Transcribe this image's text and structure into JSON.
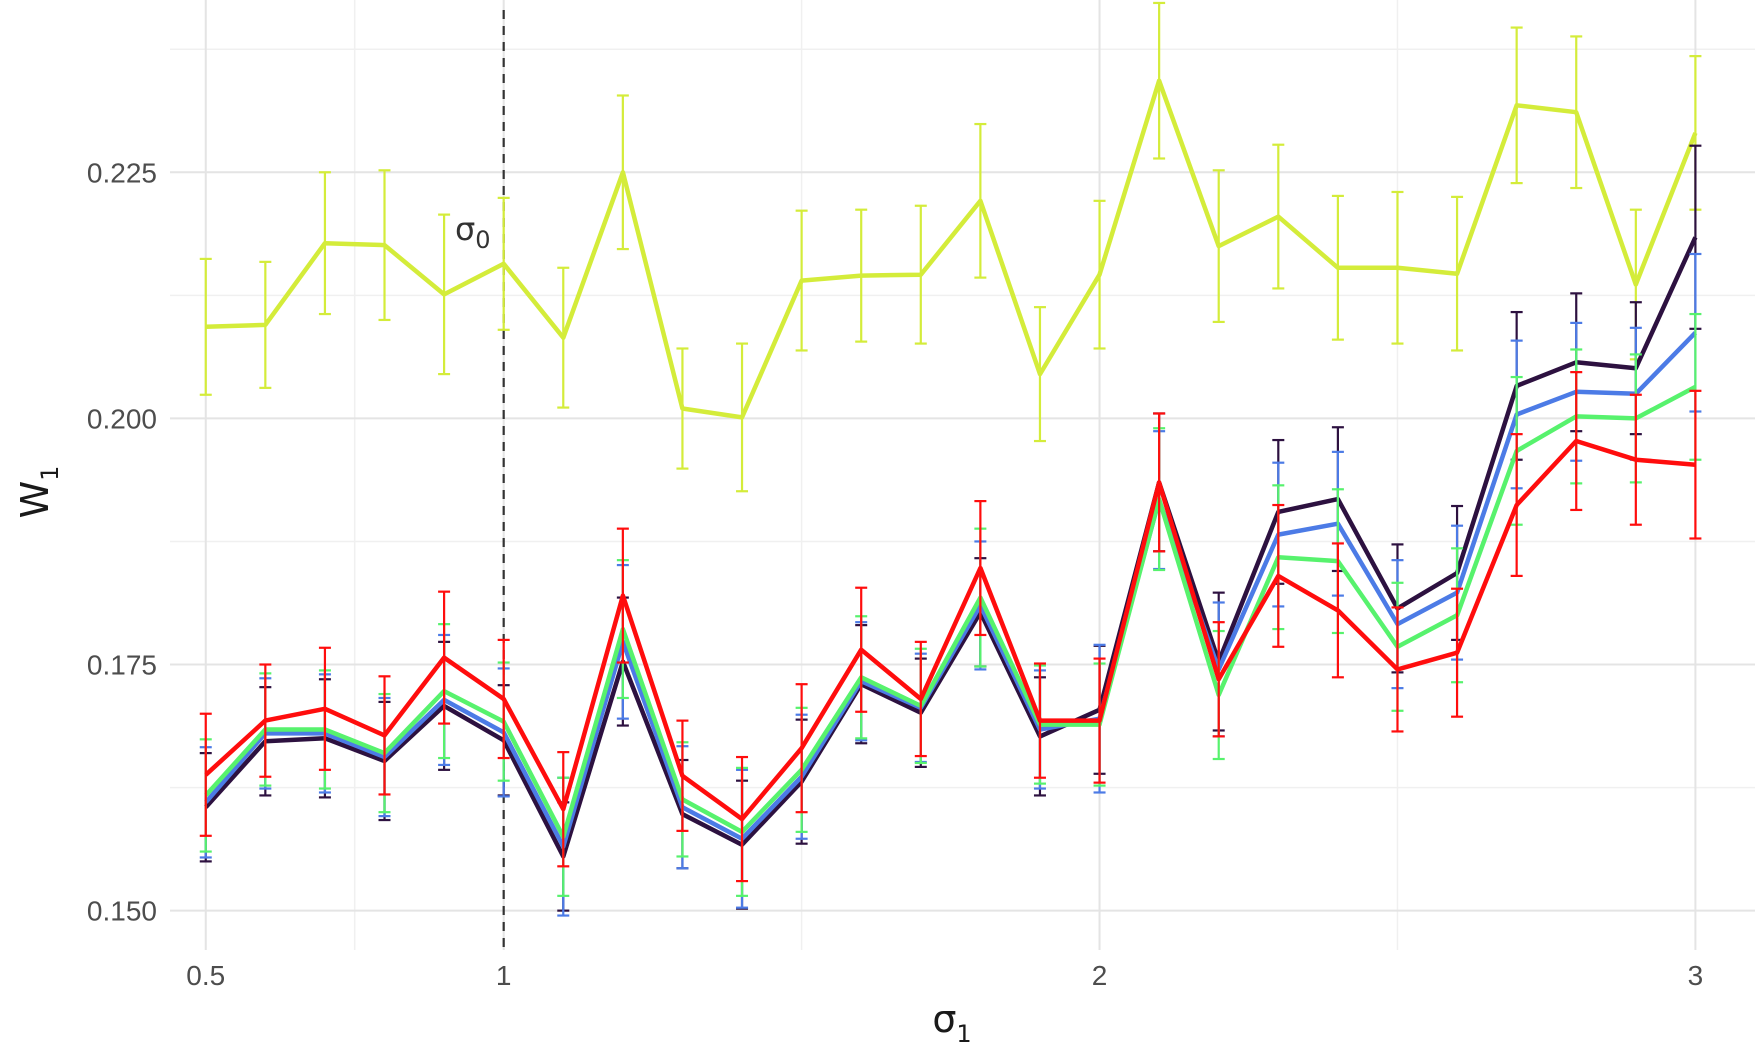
{
  "chart_data": {
    "type": "line",
    "xlabel": "σ",
    "xlabel_sub": "1",
    "ylabel": "W",
    "ylabel_sub": "1",
    "xlim": [
      0.44,
      3.1
    ],
    "ylim": [
      0.146,
      0.2425
    ],
    "xticks": [
      0.5,
      1,
      2,
      3
    ],
    "xtick_labels": [
      "0.5",
      "1",
      "2",
      "3"
    ],
    "yticks": [
      0.15,
      0.175,
      0.2,
      0.225
    ],
    "ytick_labels": [
      "0.150",
      "0.175",
      "0.200",
      "0.225"
    ],
    "grid": true,
    "legend": "none",
    "reference_line": {
      "x": 1,
      "style": "dashed",
      "label": "σ",
      "label_sub": "0"
    },
    "x": [
      0.5,
      0.6,
      0.7,
      0.8,
      0.9,
      1.0,
      1.1,
      1.2,
      1.3,
      1.4,
      1.5,
      1.6,
      1.7,
      1.8,
      1.9,
      2.0,
      2.1,
      2.2,
      2.3,
      2.4,
      2.5,
      2.6,
      2.7,
      2.8,
      2.9,
      3.0
    ],
    "series": [
      {
        "color": "#d4ec3a",
        "values": [
          0.2093,
          0.2095,
          0.2178,
          0.2176,
          0.2126,
          0.2157,
          0.2082,
          0.225,
          0.201,
          0.2001,
          0.214,
          0.2145,
          0.2146,
          0.2221,
          0.2045,
          0.2146,
          0.2343,
          0.2175,
          0.2205,
          0.2153,
          0.2153,
          0.2147,
          0.2318,
          0.2311,
          0.2136,
          0.229
        ],
        "errors": [
          0.0069,
          0.0064,
          0.0072,
          0.0076,
          0.0081,
          0.0067,
          0.0071,
          0.0078,
          0.0061,
          0.0075,
          0.0071,
          0.0067,
          0.007,
          0.0078,
          0.0068,
          0.0075,
          0.0079,
          0.0077,
          0.0073,
          0.0073,
          0.0077,
          0.0078,
          0.0079,
          0.0077,
          0.0076,
          0.0078
        ]
      },
      {
        "color": "#2d1140",
        "values": [
          0.1605,
          0.1672,
          0.1675,
          0.1652,
          0.1708,
          0.1673,
          0.1555,
          0.1753,
          0.1598,
          0.1567,
          0.1631,
          0.173,
          0.1701,
          0.1803,
          0.1677,
          0.1704,
          0.1935,
          0.1753,
          0.1905,
          0.1918,
          0.1807,
          0.1843,
          0.2033,
          0.2057,
          0.2051,
          0.2184
        ],
        "errors": [
          0.0055,
          0.0055,
          0.006,
          0.006,
          0.0065,
          0.0056,
          0.0055,
          0.0065,
          0.0055,
          0.0065,
          0.0063,
          0.006,
          0.0055,
          0.0055,
          0.006,
          0.0065,
          0.007,
          0.007,
          0.0073,
          0.0073,
          0.0065,
          0.0068,
          0.0075,
          0.007,
          0.0067,
          0.0093
        ]
      },
      {
        "color": "#4c7be6",
        "values": [
          0.161,
          0.168,
          0.168,
          0.1656,
          0.1714,
          0.1681,
          0.1565,
          0.1773,
          0.1605,
          0.1573,
          0.1636,
          0.1733,
          0.1706,
          0.181,
          0.1684,
          0.1695,
          0.1917,
          0.1745,
          0.1882,
          0.1893,
          0.1791,
          0.1823,
          0.2004,
          0.2027,
          0.2025,
          0.2087
        ],
        "errors": [
          0.0056,
          0.0056,
          0.006,
          0.006,
          0.0066,
          0.0065,
          0.007,
          0.0078,
          0.0062,
          0.007,
          0.0063,
          0.006,
          0.0055,
          0.0065,
          0.006,
          0.0075,
          0.007,
          0.0068,
          0.0073,
          0.0073,
          0.0065,
          0.0068,
          0.0075,
          0.007,
          0.0067,
          0.008
        ]
      },
      {
        "color": "#57f26d",
        "values": [
          0.1617,
          0.1684,
          0.1684,
          0.166,
          0.1723,
          0.1692,
          0.1575,
          0.1786,
          0.1613,
          0.158,
          0.1643,
          0.1737,
          0.1708,
          0.1818,
          0.1689,
          0.1689,
          0.1918,
          0.1719,
          0.1859,
          0.1855,
          0.1768,
          0.18,
          0.1967,
          0.2002,
          0.2,
          0.2032
        ],
        "errors": [
          0.0057,
          0.0057,
          0.006,
          0.006,
          0.0068,
          0.006,
          0.006,
          0.007,
          0.0058,
          0.0065,
          0.0063,
          0.0062,
          0.0058,
          0.007,
          0.006,
          0.0062,
          0.0072,
          0.0065,
          0.0073,
          0.0073,
          0.0065,
          0.0068,
          0.0075,
          0.0068,
          0.0065,
          0.0074
        ]
      },
      {
        "color": "#ff0d0d",
        "values": [
          0.1638,
          0.1693,
          0.1705,
          0.1678,
          0.1757,
          0.1715,
          0.1603,
          0.182,
          0.1637,
          0.1593,
          0.1665,
          0.1765,
          0.1715,
          0.1848,
          0.1693,
          0.1693,
          0.1935,
          0.1735,
          0.184,
          0.1805,
          0.1745,
          0.1762,
          0.1912,
          0.1977,
          0.1958,
          0.1953
        ],
        "errors": [
          0.0062,
          0.0057,
          0.0062,
          0.006,
          0.0067,
          0.006,
          0.0058,
          0.0068,
          0.0056,
          0.0063,
          0.0065,
          0.0063,
          0.0058,
          0.0068,
          0.0058,
          0.0063,
          0.007,
          0.0058,
          0.0072,
          0.0068,
          0.0063,
          0.0065,
          0.0072,
          0.007,
          0.0066,
          0.0075
        ]
      }
    ]
  }
}
